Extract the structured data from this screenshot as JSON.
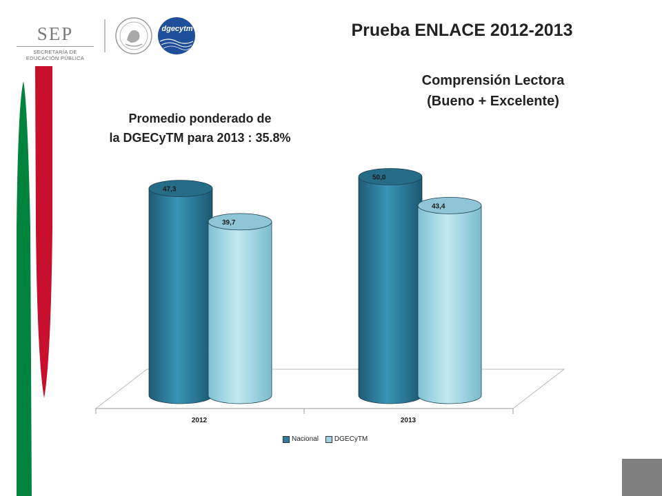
{
  "header": {
    "title": "Prueba ENLACE 2012-2013",
    "sep_logo": {
      "word": "SEP",
      "line1": "SECRETARÍA DE",
      "line2": "EDUCACIÓN PÚBLICA"
    },
    "seal_text": "ESTADOS UNIDOS MEXICANOS",
    "dgecytm_logo": "dgecytm"
  },
  "subtitle": {
    "line1": "Comprensión Lectora",
    "line2": "(Bueno + Excelente)"
  },
  "note": {
    "line1": "Promedio ponderado de",
    "line2": "la DGECyTM para 2013 : 35.8%"
  },
  "colors": {
    "green": "#00843d",
    "red": "#c8102e",
    "nacional": "#2e7f9e",
    "dgecytm": "#9bd3e3",
    "gray_block": "#7f7f7f"
  },
  "chart_data": {
    "type": "bar",
    "categories": [
      "2012",
      "2013"
    ],
    "series": [
      {
        "name": "Nacional",
        "values": [
          47.3,
          50.0
        ],
        "labels": [
          "47,3",
          "50,0"
        ],
        "color": "#2e7f9e"
      },
      {
        "name": "DGECyTM",
        "values": [
          39.7,
          43.4
        ],
        "labels": [
          "39,7",
          "43,4"
        ],
        "color": "#9bd3e3"
      }
    ],
    "ylim": [
      0,
      55
    ],
    "grid": false,
    "legend": "bottom",
    "style": "3d-cylinder"
  }
}
